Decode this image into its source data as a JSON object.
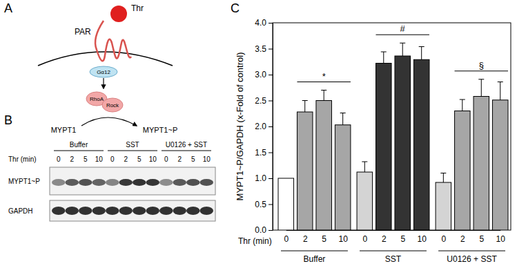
{
  "panel_labels": [
    "A",
    "B",
    "C"
  ],
  "diagram": {
    "ligand": "Thr",
    "receptor": "PAR",
    "g_protein": "Gα12",
    "effectors": [
      "RhoA",
      "Rock"
    ],
    "substrate": "MYPT1",
    "product": "MYPT1~P"
  },
  "blot": {
    "groups": [
      "Buffer",
      "SST",
      "U0126 + SST"
    ],
    "time_label": "Thr (min)",
    "times": [
      "0",
      "2",
      "5",
      "10",
      "0",
      "2",
      "5",
      "10",
      "0",
      "2",
      "5",
      "10"
    ],
    "rows": [
      "MYPT1~P",
      "GAPDH"
    ]
  },
  "chart_data": {
    "type": "bar",
    "y_label": "MYPT1~P/GAPDH (x-Fold of control)",
    "x_label": "Thr (min)",
    "categories": [
      "0",
      "2",
      "5",
      "10",
      "0",
      "2",
      "5",
      "10",
      "0",
      "2",
      "5",
      "10"
    ],
    "groups": [
      "Buffer",
      "SST",
      "U0126 + SST"
    ],
    "values": [
      1.0,
      2.28,
      2.5,
      2.03,
      1.12,
      3.22,
      3.36,
      3.29,
      0.92,
      2.3,
      2.58,
      2.51
    ],
    "errors": [
      null,
      0.22,
      0.2,
      0.23,
      0.2,
      0.22,
      0.25,
      0.25,
      0.18,
      0.22,
      0.33,
      0.35
    ],
    "colors": [
      "#ffffff",
      "#a6a6a6",
      "#a6a6a6",
      "#a6a6a6",
      "#d4d4d4",
      "#333333",
      "#333333",
      "#333333",
      "#d4d4d4",
      "#a6a6a6",
      "#a6a6a6",
      "#a6a6a6"
    ],
    "significance": [
      "*",
      "#",
      "§"
    ],
    "ylim": [
      0,
      4
    ],
    "yticks": [
      {
        "value": 0,
        "label": "0.0"
      },
      {
        "value": 0.5,
        "label": "0.5"
      },
      {
        "value": 1,
        "label": "1.0"
      },
      {
        "value": 1.5,
        "label": "1.5"
      },
      {
        "value": 2,
        "label": "2.0"
      },
      {
        "value": 2.5,
        "label": "2.5"
      },
      {
        "value": 3,
        "label": "3.0"
      },
      {
        "value": 3.5,
        "label": "3.5"
      },
      {
        "value": 4,
        "label": "4.0"
      }
    ]
  }
}
